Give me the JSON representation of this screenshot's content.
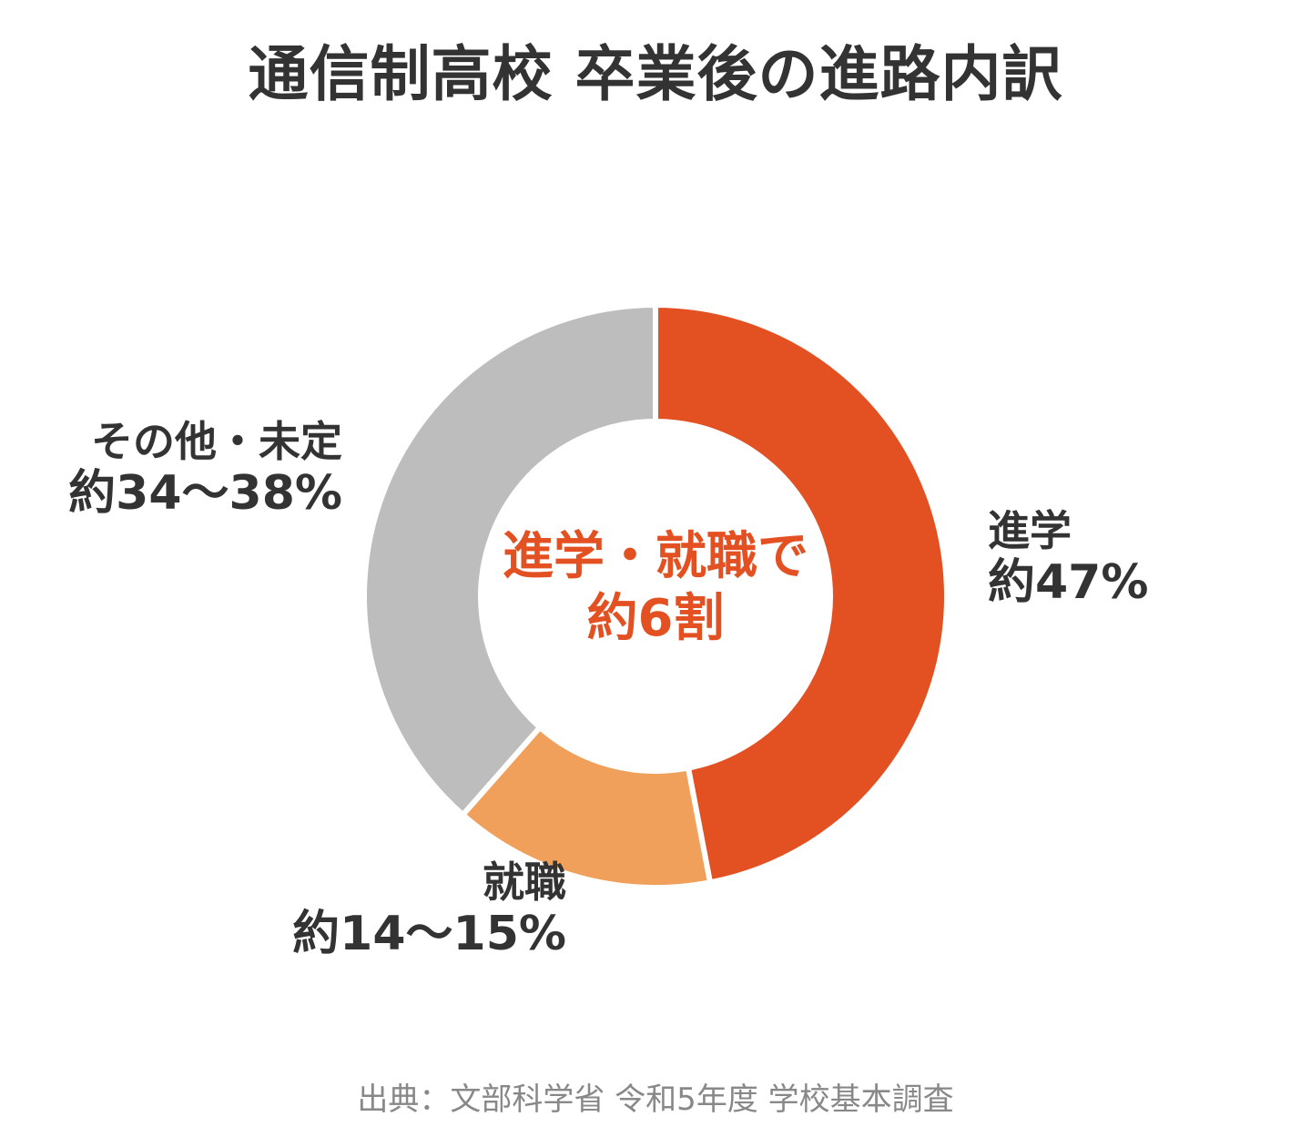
{
  "title": "通信制高校 卒業後の進路内訳",
  "center": {
    "line1": "進学・就職で",
    "line2": "約6割"
  },
  "source": "出典：文部科学省 令和5年度 学校基本調査",
  "chart_data": {
    "type": "pie",
    "title": "通信制高校 卒業後の進路内訳",
    "donut": true,
    "slices": [
      {
        "name": "進学",
        "value_label": "約47%",
        "value": 47,
        "color": "#e35022"
      },
      {
        "name": "就職",
        "value_label": "約14〜15%",
        "value": 14.5,
        "color": "#f0a05a"
      },
      {
        "name": "その他・未定",
        "value_label": "約34〜38%",
        "value": 38.5,
        "color": "#bdbdbd"
      }
    ]
  }
}
